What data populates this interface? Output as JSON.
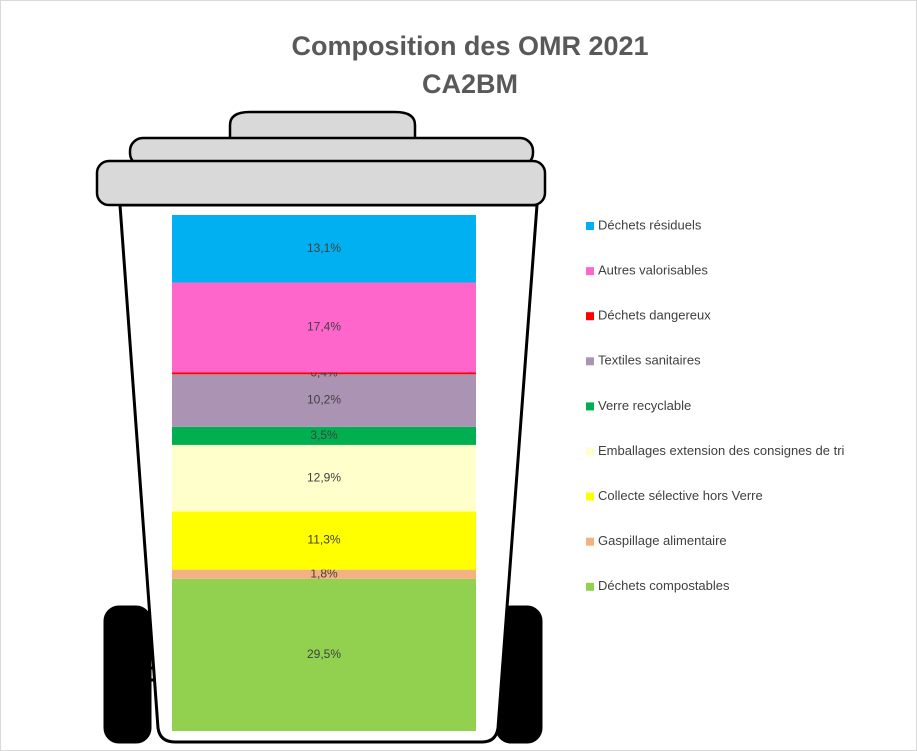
{
  "chart_data": {
    "type": "bar",
    "stacked": true,
    "title": "Composition des OMR 2021",
    "subtitle": "CA2BM",
    "categories": [
      null
    ],
    "series": [
      {
        "name": "Déchets résiduels",
        "color": "#00b0f0",
        "values": [
          13.1
        ],
        "value_labels": [
          "13,1%"
        ]
      },
      {
        "name": "Autres valorisables",
        "color": "#ff66cc",
        "values": [
          17.4
        ],
        "value_labels": [
          "17,4%"
        ]
      },
      {
        "name": "Déchets dangereux",
        "color": "#ff0000",
        "values": [
          0.4
        ],
        "value_labels": [
          "0,4%"
        ]
      },
      {
        "name": "Textiles sanitaires",
        "color": "#ab93b4",
        "values": [
          10.2
        ],
        "value_labels": [
          "10,2%"
        ]
      },
      {
        "name": "Verre recyclable",
        "color": "#00b050",
        "values": [
          3.5
        ],
        "value_labels": [
          "3,5%"
        ]
      },
      {
        "name": "Emballages extension des consignes de tri",
        "color": "#ffffcc",
        "values": [
          12.9
        ],
        "value_labels": [
          "12,9%"
        ]
      },
      {
        "name": "Collecte sélective hors Verre",
        "color": "#ffff00",
        "values": [
          11.3
        ],
        "value_labels": [
          "11,3%"
        ]
      },
      {
        "name": "Gaspillage alimentaire",
        "color": "#f4b183",
        "values": [
          1.8
        ],
        "value_labels": [
          "1,8%"
        ]
      },
      {
        "name": "Déchets compostables",
        "color": "#92d050",
        "values": [
          29.5
        ],
        "value_labels": [
          "29,5%"
        ]
      }
    ],
    "legend": "right"
  }
}
